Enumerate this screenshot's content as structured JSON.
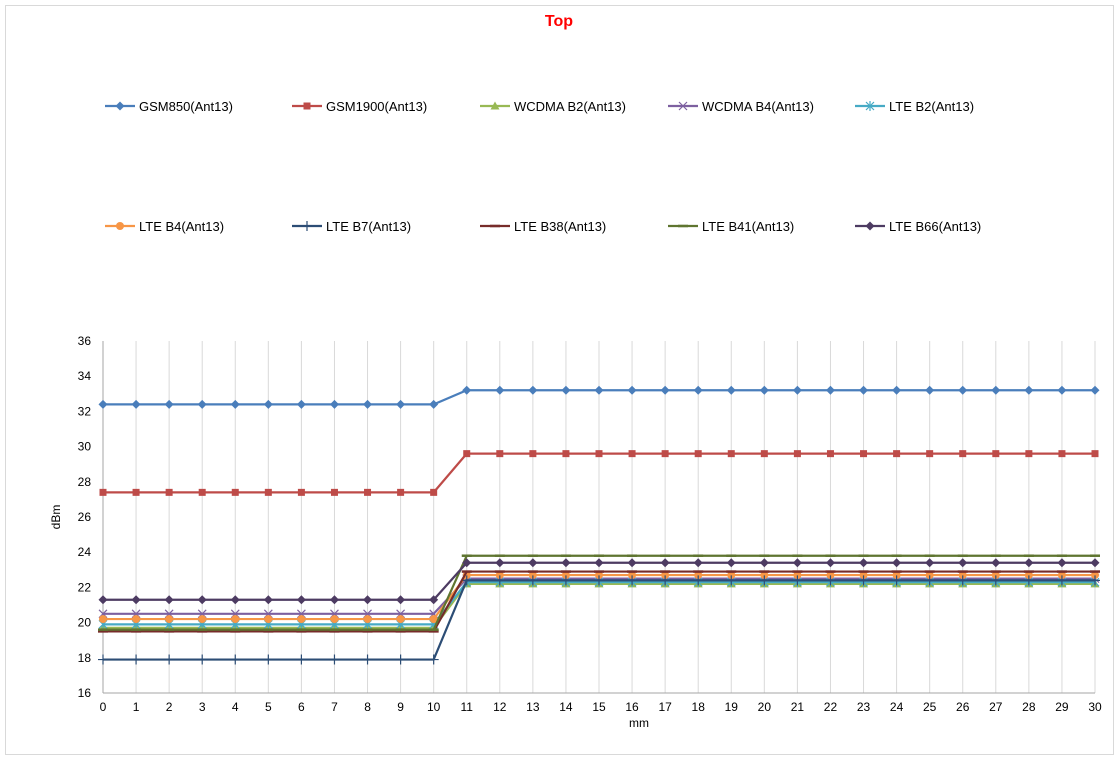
{
  "chart_data": {
    "type": "line",
    "title": "Top",
    "xlabel": "mm",
    "ylabel": "dBm",
    "ylim": [
      16,
      36
    ],
    "yticks": [
      16,
      18,
      20,
      22,
      24,
      26,
      28,
      30,
      32,
      34,
      36
    ],
    "x": [
      0,
      1,
      2,
      3,
      4,
      5,
      6,
      7,
      8,
      9,
      10,
      11,
      12,
      13,
      14,
      15,
      16,
      17,
      18,
      19,
      20,
      21,
      22,
      23,
      24,
      25,
      26,
      27,
      28,
      29,
      30
    ],
    "grid": "vertical",
    "legend_position": "top",
    "series": [
      {
        "name": "GSM850(Ant13)",
        "color": "#4a7ebb",
        "marker": "diamond",
        "before": 32.4,
        "after": 33.2
      },
      {
        "name": "GSM1900(Ant13)",
        "color": "#be4b48",
        "marker": "square",
        "before": 27.4,
        "after": 29.6
      },
      {
        "name": "WCDMA B2(Ant13)",
        "color": "#98b954",
        "marker": "triangle",
        "before": 19.7,
        "after": 22.2
      },
      {
        "name": "WCDMA B4(Ant13)",
        "color": "#7d60a0",
        "marker": "x",
        "before": 20.5,
        "after": 22.5
      },
      {
        "name": "LTE B2(Ant13)",
        "color": "#46aac5",
        "marker": "asterisk",
        "before": 19.9,
        "after": 22.3
      },
      {
        "name": "LTE B4(Ant13)",
        "color": "#f79646",
        "marker": "circle",
        "before": 20.2,
        "after": 22.7
      },
      {
        "name": "LTE B7(Ant13)",
        "color": "#2c4d75",
        "marker": "plus",
        "before": 17.9,
        "after": 22.4
      },
      {
        "name": "LTE B38(Ant13)",
        "color": "#772c2a",
        "marker": "dash",
        "before": 19.5,
        "after": 22.9
      },
      {
        "name": "LTE B41(Ant13)",
        "color": "#5f7530",
        "marker": "dash",
        "before": 19.6,
        "after": 23.8
      },
      {
        "name": "LTE B66(Ant13)",
        "color": "#4d3b62",
        "marker": "diamond",
        "before": 21.3,
        "after": 23.4
      }
    ]
  }
}
